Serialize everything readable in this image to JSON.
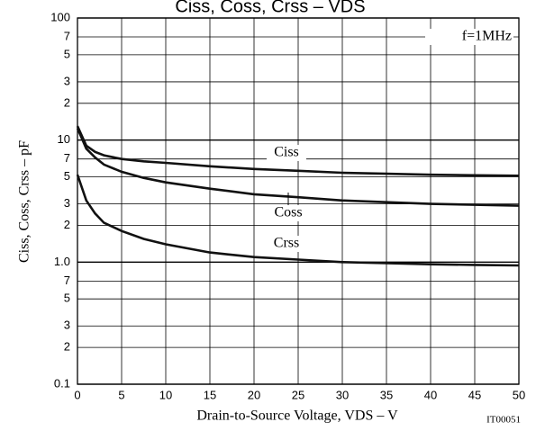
{
  "chart_data": {
    "type": "line",
    "title": "Ciss, Coss, Crss – VDS",
    "x_label": "Drain-to-Source Voltage, VDS – V",
    "y_label": "Ciss, Coss, Crss – pF",
    "annotations": [
      "f=1MHz",
      "IT00051"
    ],
    "x": [
      0,
      1,
      2,
      3,
      5,
      7.5,
      10,
      15,
      20,
      25,
      30,
      35,
      40,
      45,
      50
    ],
    "series": [
      {
        "name": "Ciss",
        "color": "#111111",
        "values": [
          13,
          9,
          8,
          7.5,
          7,
          6.7,
          6.5,
          6.1,
          5.8,
          5.6,
          5.4,
          5.3,
          5.2,
          5.15,
          5.1
        ]
      },
      {
        "name": "Coss",
        "color": "#111111",
        "values": [
          12.5,
          8.5,
          7.2,
          6.3,
          5.5,
          4.9,
          4.5,
          4.0,
          3.6,
          3.4,
          3.2,
          3.1,
          3.0,
          2.95,
          2.9
        ]
      },
      {
        "name": "Crss",
        "color": "#111111",
        "values": [
          5.2,
          3.2,
          2.5,
          2.1,
          1.8,
          1.55,
          1.4,
          1.2,
          1.1,
          1.05,
          1.0,
          0.98,
          0.96,
          0.95,
          0.94
        ]
      }
    ],
    "xlim": [
      0,
      50
    ],
    "xticks": [
      0,
      5,
      10,
      15,
      20,
      25,
      30,
      35,
      40,
      45,
      50
    ],
    "ylim": [
      0.1,
      100
    ],
    "y_scale": "log",
    "yticks": [
      100,
      {
        "value": 70,
        "label": "7"
      },
      {
        "value": 50,
        "label": "5"
      },
      {
        "value": 30,
        "label": "3"
      },
      {
        "value": 20,
        "label": "2"
      },
      10,
      7,
      5,
      3,
      2,
      {
        "value": 1,
        "label": "1.0"
      },
      {
        "value": 0.7,
        "label": "7"
      },
      {
        "value": 0.5,
        "label": "5"
      },
      {
        "value": 0.3,
        "label": "3"
      },
      {
        "value": 0.2,
        "label": "2"
      },
      0.1
    ],
    "grid": true
  }
}
